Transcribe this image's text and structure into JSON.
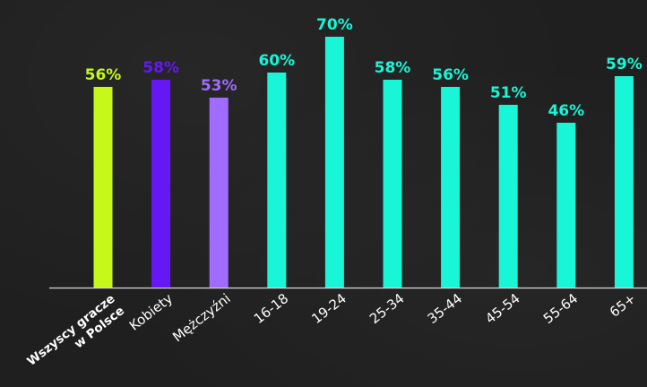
{
  "chart_data": {
    "type": "bar",
    "categories": [
      "Wszyscy gracze w Polsce",
      "Kobiety",
      "Mężczyźni",
      "16-18",
      "19-24",
      "25-34",
      "35-44",
      "45-54",
      "55-64",
      "65+"
    ],
    "category_label_lines": [
      [
        "Wszyscy gracze",
        "w Polsce"
      ],
      [
        "Kobiety"
      ],
      [
        "Mężczyźni"
      ],
      [
        "16-18"
      ],
      [
        "19-24"
      ],
      [
        "25-34"
      ],
      [
        "35-44"
      ],
      [
        "45-54"
      ],
      [
        "55-64"
      ],
      [
        "65+"
      ]
    ],
    "values": [
      56,
      58,
      53,
      60,
      70,
      58,
      56,
      51,
      46,
      59
    ],
    "value_labels": [
      "56%",
      "58%",
      "53%",
      "60%",
      "70%",
      "58%",
      "56%",
      "51%",
      "46%",
      "59%"
    ],
    "colors": [
      "#c6f81a",
      "#6617f5",
      "#a06cff",
      "#19f5d7",
      "#19f5d7",
      "#19f5d7",
      "#19f5d7",
      "#19f5d7",
      "#19f5d7",
      "#19f5d7"
    ],
    "label_colors": [
      "#c6f81a",
      "#6617f5",
      "#a06cff",
      "#19f5d7",
      "#19f5d7",
      "#19f5d7",
      "#19f5d7",
      "#19f5d7",
      "#19f5d7",
      "#19f5d7"
    ],
    "bold_category": [
      true,
      false,
      false,
      false,
      false,
      false,
      false,
      false,
      false,
      false
    ],
    "ylim": [
      0,
      70
    ],
    "grid": false,
    "legend": "none",
    "title": "",
    "xlabel": "",
    "ylabel": "",
    "background_color": "#1f1f1f",
    "baseline_color": "#d9d9d9"
  }
}
